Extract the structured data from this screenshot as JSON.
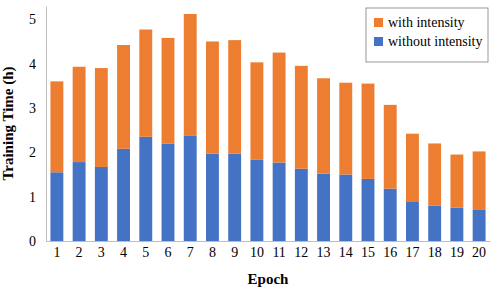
{
  "chart_data": {
    "type": "bar",
    "stacked": true,
    "legend": "upper right",
    "x_label": "Epoch",
    "y_label": "Training Time (h)",
    "categories": [
      "1",
      "2",
      "3",
      "4",
      "5",
      "6",
      "7",
      "8",
      "9",
      "10",
      "11",
      "12",
      "13",
      "14",
      "15",
      "16",
      "17",
      "18",
      "19",
      "20"
    ],
    "series": [
      {
        "name": "without intensity",
        "color": "#4472c4",
        "values": [
          1.55,
          1.78,
          1.67,
          2.08,
          2.35,
          2.2,
          2.37,
          1.97,
          1.97,
          1.83,
          1.77,
          1.63,
          1.52,
          1.5,
          1.4,
          1.18,
          0.88,
          0.8,
          0.75,
          0.7
        ]
      },
      {
        "name": "with intensity",
        "color": "#ed7d31",
        "values": [
          2.05,
          2.15,
          2.23,
          2.34,
          2.42,
          2.38,
          2.75,
          2.53,
          2.56,
          2.2,
          2.48,
          2.32,
          2.15,
          2.07,
          2.15,
          1.89,
          1.54,
          1.4,
          1.2,
          1.32
        ]
      }
    ],
    "ylim": [
      0,
      5.3
    ],
    "yticks": [
      0,
      1,
      2,
      3,
      4,
      5
    ]
  }
}
